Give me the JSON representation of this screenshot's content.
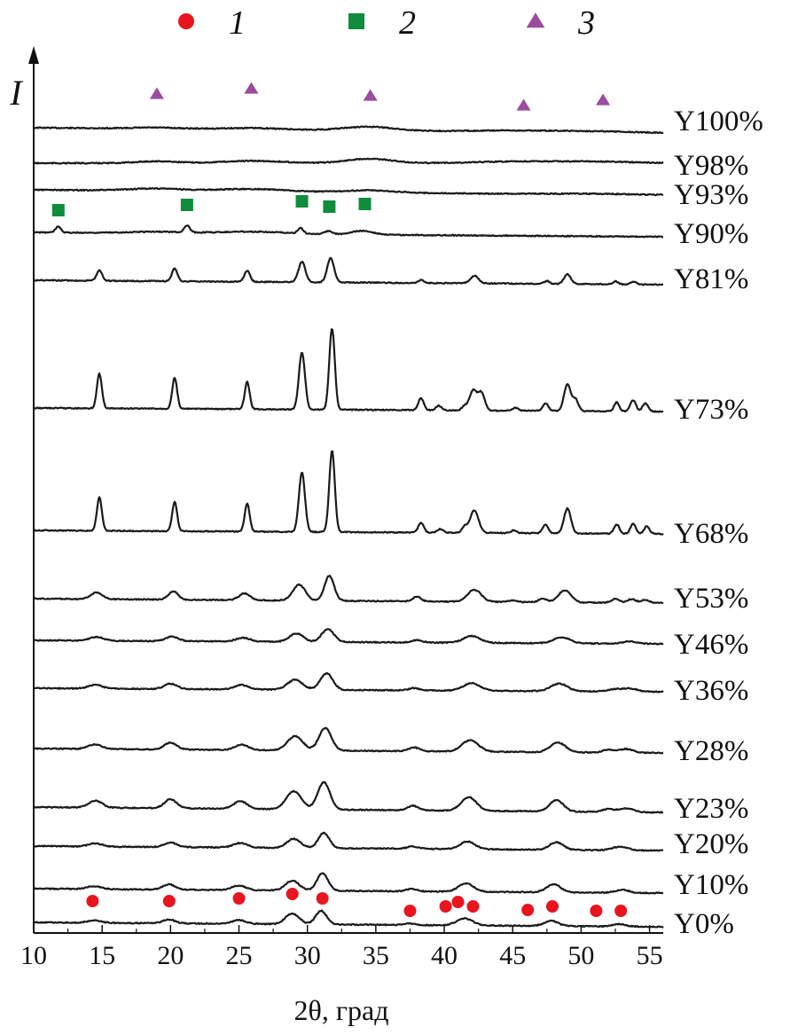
{
  "chart_data": {
    "type": "line",
    "xlabel": "2θ, град",
    "ylabel": "I",
    "xlim": [
      10,
      56
    ],
    "x_ticks": [
      10,
      15,
      20,
      25,
      30,
      35,
      40,
      45,
      50,
      55
    ],
    "legend": {
      "placement": "top",
      "entries": [
        {
          "label": "1",
          "marker": "circle",
          "color": "#e8141e"
        },
        {
          "label": "2",
          "marker": "square",
          "color": "#0f8c3c"
        },
        {
          "label": "3",
          "marker": "triangle",
          "color": "#9b4c9e"
        }
      ]
    },
    "series": [
      {
        "name": "Y100%",
        "peaks": [
          [
            19,
            0.15,
            1.8
          ],
          [
            26,
            0.2,
            2.2
          ],
          [
            34.5,
            0.5,
            1.8
          ],
          [
            45,
            0.15,
            3
          ],
          [
            51,
            0.15,
            3
          ]
        ]
      },
      {
        "name": "Y98%",
        "peaks": [
          [
            19,
            0.25,
            1.5
          ],
          [
            26,
            0.3,
            2.2
          ],
          [
            34.5,
            0.6,
            1.6
          ],
          [
            45,
            0.2,
            3
          ],
          [
            51,
            0.2,
            3
          ]
        ]
      },
      {
        "name": "Y93%",
        "peaks": [
          [
            19,
            0.3,
            2
          ],
          [
            26,
            0.35,
            2.5
          ],
          [
            34.5,
            0.3,
            1.8
          ],
          [
            51,
            0.1,
            3
          ]
        ]
      },
      {
        "name": "Y90%",
        "peaks": [
          [
            11.8,
            0.8,
            0.2
          ],
          [
            21.2,
            0.9,
            0.2
          ],
          [
            29.5,
            0.7,
            0.2
          ],
          [
            31.5,
            0.4,
            0.3
          ],
          [
            34,
            0.5,
            0.8
          ],
          [
            19,
            0.2,
            2
          ],
          [
            26,
            0.3,
            2.5
          ]
        ]
      },
      {
        "name": "Y81%",
        "peaks": [
          [
            14.8,
            1.4,
            0.2
          ],
          [
            20.3,
            1.7,
            0.2
          ],
          [
            25.6,
            1.5,
            0.2
          ],
          [
            29.6,
            2.7,
            0.25
          ],
          [
            31.7,
            3.2,
            0.25
          ],
          [
            38.3,
            0.4,
            0.2
          ],
          [
            42.2,
            1.0,
            0.3
          ],
          [
            47.5,
            0.4,
            0.2
          ],
          [
            49,
            1.3,
            0.25
          ],
          [
            52.5,
            0.4,
            0.2
          ],
          [
            53.8,
            0.4,
            0.2
          ]
        ]
      },
      {
        "name": "Y73%",
        "peaks": [
          [
            14.8,
            4.6,
            0.18
          ],
          [
            20.3,
            4.1,
            0.18
          ],
          [
            25.6,
            3.6,
            0.18
          ],
          [
            29.6,
            7.6,
            0.22
          ],
          [
            31.8,
            10.8,
            0.2
          ],
          [
            38.3,
            1.6,
            0.2
          ],
          [
            39.6,
            0.6,
            0.2
          ],
          [
            41.5,
            0.6,
            0.2
          ],
          [
            42.1,
            2.6,
            0.25
          ],
          [
            42.7,
            2.4,
            0.25
          ],
          [
            45.2,
            0.4,
            0.2
          ],
          [
            47.4,
            1.0,
            0.2
          ],
          [
            49,
            3.5,
            0.25
          ],
          [
            49.6,
            1.5,
            0.2
          ],
          [
            52.6,
            1.2,
            0.18
          ],
          [
            53.8,
            1.5,
            0.2
          ],
          [
            54.7,
            1.1,
            0.2
          ]
        ]
      },
      {
        "name": "Y68%",
        "peaks": [
          [
            14.8,
            4.4,
            0.18
          ],
          [
            20.3,
            3.9,
            0.18
          ],
          [
            25.6,
            3.7,
            0.18
          ],
          [
            29.6,
            7.9,
            0.22
          ],
          [
            31.8,
            10.8,
            0.2
          ],
          [
            38.3,
            1.3,
            0.2
          ],
          [
            39.7,
            0.5,
            0.2
          ],
          [
            41.5,
            0.8,
            0.2
          ],
          [
            42.2,
            3.0,
            0.3
          ],
          [
            45.1,
            0.4,
            0.2
          ],
          [
            47.4,
            1.1,
            0.2
          ],
          [
            49,
            3.3,
            0.25
          ],
          [
            52.6,
            1.2,
            0.2
          ],
          [
            53.8,
            1.3,
            0.2
          ],
          [
            54.8,
            1.0,
            0.2
          ]
        ]
      },
      {
        "name": "Y53%",
        "peaks": [
          [
            14.6,
            0.9,
            0.4
          ],
          [
            20.2,
            1.1,
            0.35
          ],
          [
            25.4,
            0.9,
            0.4
          ],
          [
            29.4,
            2.1,
            0.45
          ],
          [
            31.6,
            3.3,
            0.35
          ],
          [
            38,
            0.6,
            0.3
          ],
          [
            42.2,
            1.6,
            0.5
          ],
          [
            45,
            0.2,
            0.3
          ],
          [
            47.2,
            0.5,
            0.3
          ],
          [
            48.8,
            1.6,
            0.45
          ],
          [
            52.5,
            0.5,
            0.3
          ],
          [
            53.7,
            0.5,
            0.3
          ],
          [
            54.7,
            0.4,
            0.3
          ]
        ]
      },
      {
        "name": "Y46%",
        "peaks": [
          [
            14.6,
            0.5,
            0.5
          ],
          [
            20.1,
            0.6,
            0.45
          ],
          [
            25.3,
            0.5,
            0.5
          ],
          [
            29.2,
            1.1,
            0.5
          ],
          [
            31.5,
            1.7,
            0.45
          ],
          [
            38,
            0.3,
            0.4
          ],
          [
            42,
            0.9,
            0.6
          ],
          [
            48.6,
            0.8,
            0.6
          ],
          [
            53.6,
            0.3,
            0.5
          ]
        ]
      },
      {
        "name": "Y36%",
        "peaks": [
          [
            14.5,
            0.5,
            0.5
          ],
          [
            20,
            0.7,
            0.45
          ],
          [
            25.2,
            0.6,
            0.5
          ],
          [
            29.1,
            1.3,
            0.55
          ],
          [
            31.4,
            2.2,
            0.45
          ],
          [
            37.8,
            0.3,
            0.4
          ],
          [
            42,
            1.0,
            0.6
          ],
          [
            48.4,
            1.0,
            0.6
          ],
          [
            52.5,
            0.3,
            0.5
          ],
          [
            53.6,
            0.4,
            0.5
          ]
        ]
      },
      {
        "name": "Y28%",
        "peaks": [
          [
            14.5,
            0.6,
            0.5
          ],
          [
            20,
            0.9,
            0.45
          ],
          [
            25.2,
            0.7,
            0.5
          ],
          [
            29.1,
            1.9,
            0.55
          ],
          [
            31.3,
            3.0,
            0.45
          ],
          [
            37.8,
            0.5,
            0.4
          ],
          [
            41.9,
            1.5,
            0.6
          ],
          [
            48.3,
            1.3,
            0.55
          ],
          [
            52,
            0.4,
            0.4
          ],
          [
            53.3,
            0.5,
            0.5
          ]
        ]
      },
      {
        "name": "Y23%",
        "peaks": [
          [
            14.5,
            0.9,
            0.5
          ],
          [
            20,
            1.2,
            0.45
          ],
          [
            25.1,
            1.0,
            0.5
          ],
          [
            29,
            2.4,
            0.55
          ],
          [
            31.2,
            3.6,
            0.45
          ],
          [
            37.7,
            0.6,
            0.4
          ],
          [
            41.8,
            1.8,
            0.55
          ],
          [
            48.2,
            1.5,
            0.5
          ],
          [
            52,
            0.4,
            0.4
          ],
          [
            53.3,
            0.5,
            0.5
          ]
        ]
      },
      {
        "name": "Y20%",
        "peaks": [
          [
            14.5,
            0.4,
            0.5
          ],
          [
            20,
            0.6,
            0.45
          ],
          [
            25.1,
            0.6,
            0.5
          ],
          [
            29,
            1.2,
            0.5
          ],
          [
            31.2,
            2.0,
            0.4
          ],
          [
            37.7,
            0.3,
            0.4
          ],
          [
            41.7,
            1.0,
            0.55
          ],
          [
            48.2,
            1.0,
            0.5
          ],
          [
            52.5,
            0.3,
            0.4
          ],
          [
            53.2,
            0.3,
            0.4
          ]
        ]
      },
      {
        "name": "Y10%",
        "peaks": [
          [
            14.4,
            0.4,
            0.5
          ],
          [
            19.9,
            0.7,
            0.45
          ],
          [
            25,
            0.6,
            0.5
          ],
          [
            28.9,
            1.3,
            0.5
          ],
          [
            31.1,
            2.3,
            0.4
          ],
          [
            37.6,
            0.3,
            0.4
          ],
          [
            41.6,
            1.1,
            0.55
          ],
          [
            48,
            1.1,
            0.5
          ],
          [
            53,
            0.4,
            0.5
          ]
        ]
      },
      {
        "name": "Y0%",
        "peaks": [
          [
            14.4,
            0.3,
            0.5
          ],
          [
            19.9,
            0.5,
            0.45
          ],
          [
            25,
            0.5,
            0.5
          ],
          [
            28.9,
            1.4,
            0.5
          ],
          [
            31,
            1.8,
            0.4
          ],
          [
            37.5,
            0.2,
            0.4
          ],
          [
            41.5,
            0.9,
            0.6
          ],
          [
            47.8,
            0.7,
            0.5
          ],
          [
            52.8,
            0.3,
            0.5
          ]
        ]
      }
    ],
    "markers": [
      {
        "type": "3",
        "x": [
          19,
          25.9,
          34.6,
          45.8,
          51.6
        ]
      },
      {
        "type": "2",
        "x": [
          11.8,
          21.2,
          29.6,
          31.6,
          34.2
        ]
      },
      {
        "type": "1",
        "x": [
          14.3,
          19.9,
          25,
          28.9,
          31.1,
          37.5,
          40.1,
          41,
          42.1,
          46.1,
          47.9,
          51.1,
          52.9
        ]
      }
    ]
  }
}
